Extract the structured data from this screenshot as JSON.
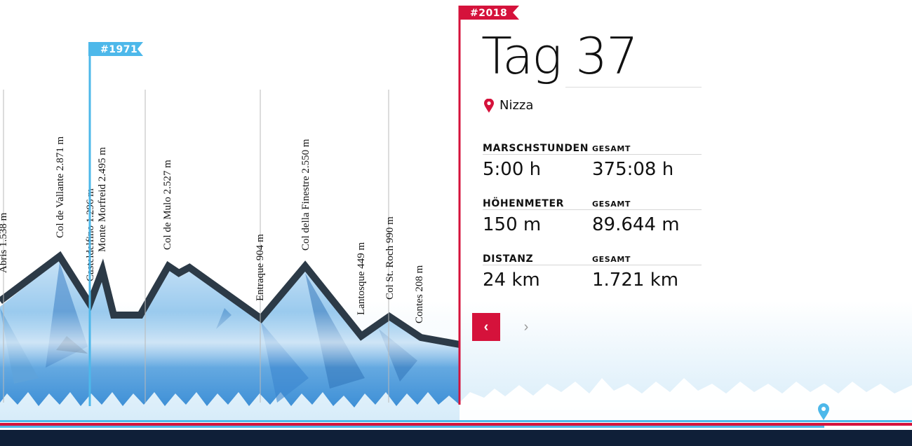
{
  "flags": {
    "current_year": "#2018",
    "past_year": "#1971"
  },
  "panel": {
    "title": "Tag 37",
    "location": "Nizza",
    "stats": [
      {
        "label": "MARSCHSTUNDEN",
        "total_label": "GESAMT",
        "value": "5:00 h",
        "total": "375:08 h"
      },
      {
        "label": "HÖHENMETER",
        "total_label": "GESAMT",
        "value": "150 m",
        "total": "89.644 m"
      },
      {
        "label": "DISTANZ",
        "total_label": "GESAMT",
        "value": "24 km",
        "total": "1.721 km"
      }
    ],
    "prev_label": "‹",
    "next_label": "›"
  },
  "peaks": [
    "Abris 1.538 m",
    "Col de Vallante 2.871 m",
    "Casteldelfino 1.296 m",
    "Monte Morfreid 2.495 m",
    "Col de Mulo 2.527 m",
    "Entraque 904 m",
    "Col della Finestre 2.550 m",
    "Lantosque 449 m",
    "Col St. Roch 990 m",
    "Contes 208 m"
  ],
  "colors": {
    "accent_red": "#d5123b",
    "accent_blue": "#4db8ea",
    "ridge": "#2c3a47",
    "footer": "#0f1f38"
  },
  "icons": {
    "location": "map-pin-icon",
    "timeline_marker": "map-pin-icon"
  }
}
